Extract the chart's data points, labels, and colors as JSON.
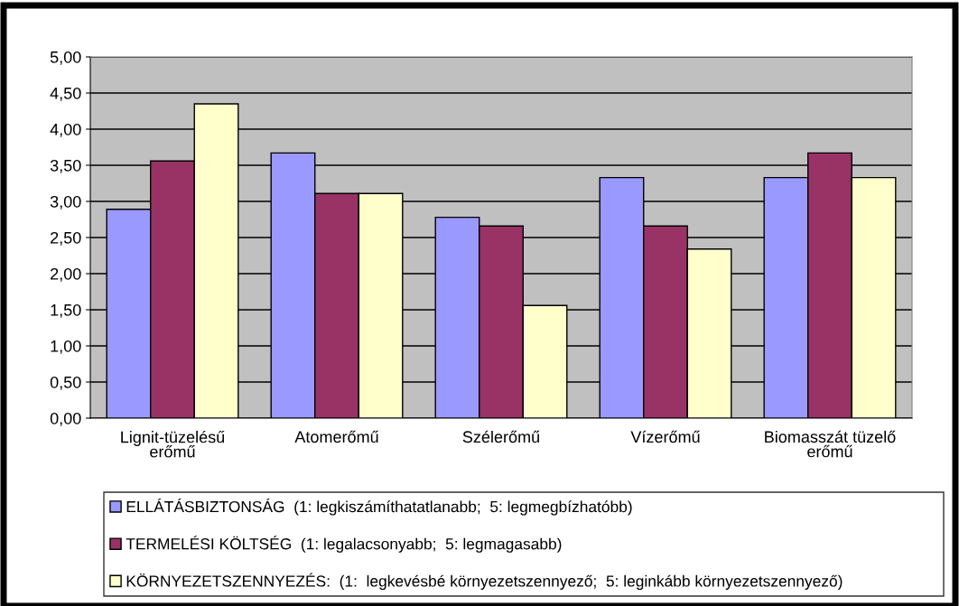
{
  "chart_data": {
    "type": "bar",
    "categories": [
      "Lignit-tüzelésű\nerőmű",
      "Atomerőmű",
      "Szélerőmű",
      "Vízerőmű",
      "Biomasszát tüzelő\nerőmű"
    ],
    "series": [
      {
        "name": "ELLÁTÁSBIZTONSÁG  (1: legkiszámíthatatlanabb;  5: legmegbízhatóbb)",
        "color": "#9999ff",
        "values": [
          2.89,
          3.67,
          2.78,
          3.33,
          3.33
        ]
      },
      {
        "name": "TERMELÉSI KÖLTSÉG  (1: legalacsonyabb;  5: legmagasabb)",
        "color": "#993366",
        "values": [
          3.56,
          3.11,
          2.66,
          2.66,
          3.67
        ]
      },
      {
        "name": "KÖRNYEZETSZENNYEZÉS:  (1:  legkevésbé környezetszennyező;  5: leginkább környezetszennyező)",
        "color": "#ffffcc",
        "values": [
          4.35,
          3.11,
          1.56,
          2.34,
          3.33
        ]
      }
    ],
    "ylim": [
      0,
      5
    ],
    "yticks": [
      {
        "value": 0,
        "label": "0,00"
      },
      {
        "value": 0.5,
        "label": "0,50"
      },
      {
        "value": 1,
        "label": "1,00"
      },
      {
        "value": 1.5,
        "label": "1,50"
      },
      {
        "value": 2,
        "label": "2,00"
      },
      {
        "value": 2.5,
        "label": "2,50"
      },
      {
        "value": 3,
        "label": "3,00"
      },
      {
        "value": 3.5,
        "label": "3,50"
      },
      {
        "value": 4,
        "label": "4,00"
      },
      {
        "value": 4.5,
        "label": "4,50"
      },
      {
        "value": 5,
        "label": "5,00"
      }
    ],
    "grid": "y",
    "legend": "bottom"
  }
}
